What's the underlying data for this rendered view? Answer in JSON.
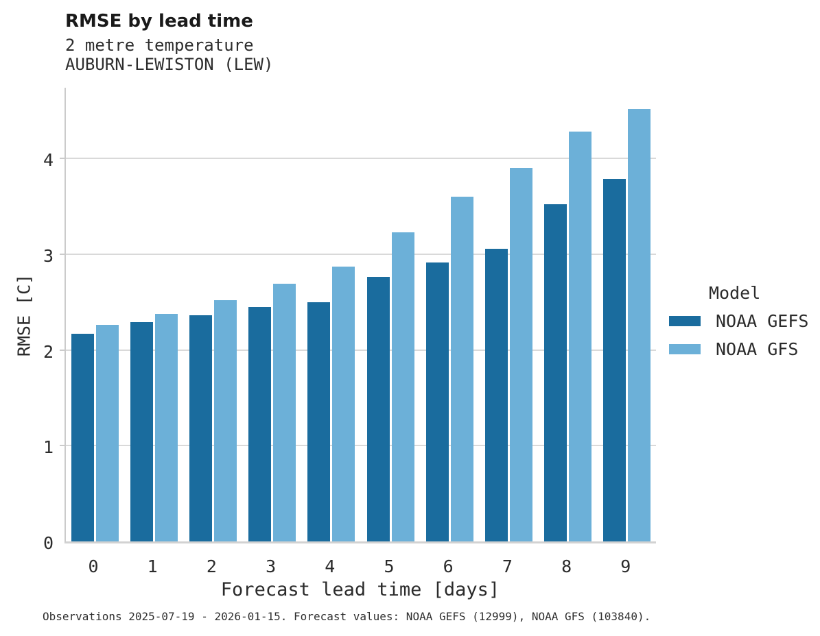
{
  "header": {
    "title": "RMSE by lead time",
    "subtitle_line1": "2 metre temperature",
    "subtitle_line2": "AUBURN-LEWISTON (LEW)"
  },
  "chart_data": {
    "type": "bar",
    "title": "RMSE by lead time",
    "subtitle": [
      "2 metre temperature",
      "AUBURN-LEWISTON (LEW)"
    ],
    "categories": [
      "0",
      "1",
      "2",
      "3",
      "4",
      "5",
      "6",
      "7",
      "8",
      "9"
    ],
    "series": [
      {
        "name": "NOAA GEFS",
        "color": "#1a6c9e",
        "values": [
          2.17,
          2.29,
          2.36,
          2.45,
          2.5,
          2.76,
          2.91,
          3.06,
          3.52,
          3.79
        ]
      },
      {
        "name": "NOAA GFS",
        "color": "#6cb0d8",
        "values": [
          2.26,
          2.38,
          2.52,
          2.69,
          2.87,
          3.23,
          3.6,
          3.9,
          4.28,
          4.52
        ]
      }
    ],
    "xlabel": "Forecast lead time [days]",
    "ylabel": "RMSE [C]",
    "ylim": [
      0,
      4.76
    ],
    "yticks": [
      0,
      1,
      2,
      3,
      4
    ],
    "grid": "horizontal",
    "legend_position": "right",
    "legend_title": "Model"
  },
  "legend": {
    "title": "Model",
    "items": [
      {
        "label": "NOAA GEFS",
        "color": "#1a6c9e"
      },
      {
        "label": "NOAA GFS",
        "color": "#6cb0d8"
      }
    ]
  },
  "caption": "Observations 2025-07-19 - 2026-01-15. Forecast values: NOAA GEFS (12999), NOAA GFS (103840)."
}
